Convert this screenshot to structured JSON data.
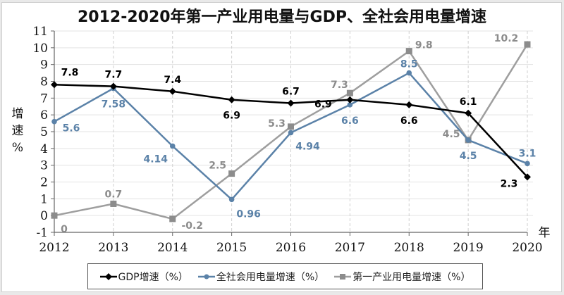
{
  "chart_data": {
    "type": "line",
    "title": "2012-2020年第一产业用电量与GDP、全社会用电量增速",
    "xlabel": "年",
    "ylabel": "增速%",
    "x": [
      "2012",
      "2013",
      "2014",
      "2015",
      "2016",
      "2017",
      "2018",
      "2019",
      "2020"
    ],
    "ylim": [
      -1,
      11
    ],
    "yticks": [
      "-1",
      "0",
      "1",
      "2",
      "3",
      "4",
      "5",
      "6",
      "7",
      "8",
      "9",
      "10",
      "11"
    ],
    "grid": true,
    "legend_position": "bottom",
    "series": [
      {
        "name": "GDP增速（%）",
        "color": "#000000",
        "marker": "diamond",
        "values": [
          7.8,
          7.7,
          7.4,
          6.9,
          6.7,
          6.9,
          6.6,
          6.1,
          2.3
        ],
        "labels": [
          "7.8",
          "7.7",
          "7.4",
          "6.9",
          "6.7",
          "6.9",
          "6.6",
          "6.1",
          "2.3"
        ]
      },
      {
        "name": "全社会用电量增速（%）",
        "color": "#5b82a8",
        "marker": "circle",
        "values": [
          5.6,
          7.58,
          4.14,
          0.96,
          4.94,
          6.6,
          8.5,
          4.5,
          3.1
        ],
        "labels": [
          "5.6",
          "7.58",
          "4.14",
          "0.96",
          "4.94",
          "6.6",
          "8.5",
          "4.5",
          "3.1"
        ]
      },
      {
        "name": "第一产业用电量增速（%）",
        "color": "#9e9e9e",
        "marker": "square",
        "values": [
          0,
          0.7,
          -0.2,
          2.5,
          5.3,
          7.3,
          9.8,
          4.5,
          10.2
        ],
        "labels": [
          "0",
          "0.7",
          "-0.2",
          "2.5",
          "5.3",
          "7.3",
          "9.8",
          "4.5",
          "10.2"
        ]
      }
    ]
  },
  "ylabel_chars": [
    "增",
    "速",
    "%"
  ]
}
